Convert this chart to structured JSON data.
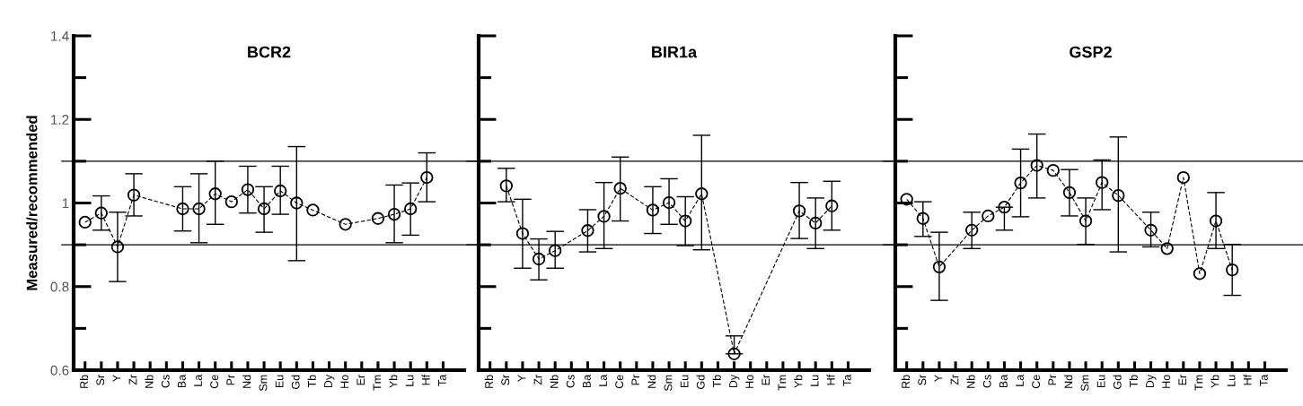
{
  "chart_data": [
    {
      "type": "line",
      "title": "BCR2",
      "ylabel": "Measured/recommended",
      "categories": [
        "Rb",
        "Sr",
        "Y",
        "Zr",
        "Nb",
        "Cs",
        "Ba",
        "La",
        "Ce",
        "Pr",
        "Nd",
        "Sm",
        "Eu",
        "Gd",
        "Tb",
        "Dy",
        "Ho",
        "Er",
        "Tm",
        "Yb",
        "Lu",
        "Hf",
        "Ta"
      ],
      "series": [
        {
          "color": "#000000",
          "values": [
            0.954,
            0.976,
            0.895,
            1.019,
            null,
            null,
            0.986,
            0.986,
            1.022,
            1.003,
            1.032,
            0.986,
            1.029,
            1.0,
            0.983,
            null,
            0.949,
            null,
            0.963,
            0.973,
            0.986,
            1.061,
            null
          ],
          "errors": [
            null,
            [
              0.935,
              1.017
            ],
            [
              0.812,
              0.978
            ],
            [
              0.969,
              1.07
            ],
            null,
            null,
            [
              0.933,
              1.039
            ],
            [
              0.905,
              1.07
            ],
            [
              0.949,
              1.1
            ],
            null,
            [
              0.976,
              1.088
            ],
            [
              0.93,
              1.039
            ],
            [
              0.973,
              1.088
            ],
            [
              0.862,
              1.135
            ],
            null,
            null,
            null,
            null,
            null,
            [
              0.905,
              1.043
            ],
            [
              0.923,
              1.048
            ],
            [
              1.003,
              1.12
            ],
            null
          ]
        }
      ],
      "ylim": [
        0.6,
        1.4
      ],
      "yticks": [
        0.6,
        {
          "value": 0.7,
          "label": null
        },
        0.8,
        {
          "value": 0.9,
          "label": null
        },
        {
          "value": 1.0,
          "label": "1"
        },
        {
          "value": 1.1,
          "label": null
        },
        1.2,
        {
          "value": 1.3,
          "label": null
        },
        1.4
      ],
      "ref_lines": [
        {
          "axis": "y",
          "value": 1.1,
          "color": "#000000"
        },
        {
          "axis": "y",
          "value": 0.9,
          "color": "#000000"
        }
      ],
      "marker": "circle",
      "line_style": "dashed",
      "grid": false,
      "legend": false
    },
    {
      "type": "line",
      "title": "BIR1a",
      "categories": [
        "Rb",
        "Sr",
        "Y",
        "Zr",
        "Nb",
        "Cs",
        "Ba",
        "La",
        "Ce",
        "Pr",
        "Nd",
        "Sm",
        "Eu",
        "Gd",
        "Tb",
        "Dy",
        "Ho",
        "Er",
        "Tm",
        "Yb",
        "Lu",
        "Hf",
        "Ta"
      ],
      "series": [
        {
          "color": "#000000",
          "values": [
            null,
            1.041,
            0.927,
            0.866,
            0.886,
            null,
            0.934,
            0.968,
            1.035,
            null,
            0.983,
            1.001,
            0.957,
            1.022,
            null,
            0.639,
            null,
            null,
            null,
            0.981,
            0.952,
            0.993,
            null
          ],
          "errors": [
            null,
            [
              1.003,
              1.083
            ],
            [
              0.844,
              1.009
            ],
            [
              0.816,
              0.914
            ],
            [
              0.844,
              0.932
            ],
            null,
            [
              0.883,
              0.984
            ],
            [
              0.891,
              1.049
            ],
            [
              0.957,
              1.11
            ],
            null,
            [
              0.927,
              1.039
            ],
            [
              0.949,
              1.058
            ],
            [
              0.898,
              1.015
            ],
            [
              0.888,
              1.162
            ],
            null,
            [
              0.639,
              0.682
            ],
            null,
            null,
            null,
            [
              0.915,
              1.049
            ],
            [
              0.891,
              1.012
            ],
            [
              0.935,
              1.052
            ],
            null
          ]
        }
      ],
      "ylim": [
        0.6,
        1.4
      ],
      "yticks": [
        0.6,
        {
          "value": 0.7,
          "label": null
        },
        0.8,
        {
          "value": 0.9,
          "label": null
        },
        1,
        {
          "value": 1.1,
          "label": null
        },
        1.2,
        {
          "value": 1.3,
          "label": null
        },
        1.4
      ],
      "tick_labels": "x",
      "ref_lines": [
        {
          "axis": "y",
          "value": 1.1,
          "color": "#000000"
        },
        {
          "axis": "y",
          "value": 0.9,
          "color": "#000000"
        }
      ],
      "marker": "circle",
      "line_style": "dashed",
      "grid": false,
      "legend": false
    },
    {
      "type": "line",
      "title": "GSP2",
      "categories": [
        "Rb",
        "Sr",
        "Y",
        "Zr",
        "Nb",
        "Cs",
        "Ba",
        "La",
        "Ce",
        "Pr",
        "Nd",
        "Sm",
        "Eu",
        "Gd",
        "Tb",
        "Dy",
        "Ho",
        "Er",
        "Tm",
        "Yb",
        "Lu",
        "Hf",
        "Ta"
      ],
      "series": [
        {
          "color": "#000000",
          "values": [
            1.009,
            0.963,
            0.847,
            null,
            0.935,
            0.969,
            0.99,
            1.048,
            1.09,
            1.078,
            1.025,
            0.957,
            1.049,
            1.018,
            null,
            0.935,
            0.891,
            1.061,
            0.831,
            0.957,
            0.84,
            null,
            null
          ],
          "errors": [
            null,
            [
              0.92,
              1.003
            ],
            [
              0.767,
              0.93
            ],
            null,
            [
              0.891,
              0.978
            ],
            null,
            [
              0.935,
              0.99
            ],
            [
              0.967,
              1.129
            ],
            [
              1.012,
              1.165
            ],
            null,
            [
              0.969,
              1.08
            ],
            [
              0.901,
              1.012
            ],
            [
              0.984,
              1.103
            ],
            [
              0.883,
              1.158
            ],
            null,
            [
              0.895,
              0.978
            ],
            null,
            null,
            null,
            [
              0.891,
              1.025
            ],
            [
              0.779,
              0.901
            ],
            null,
            null
          ]
        }
      ],
      "ylim": [
        0.6,
        1.4
      ],
      "yticks": [
        0.6,
        {
          "value": 0.7,
          "label": null
        },
        0.8,
        {
          "value": 0.9,
          "label": null
        },
        1,
        {
          "value": 1.1,
          "label": null
        },
        1.2,
        {
          "value": 1.3,
          "label": null
        },
        1.4
      ],
      "tick_labels": "x",
      "ref_lines": [
        {
          "axis": "y",
          "value": 1.1,
          "color": "#000000"
        },
        {
          "axis": "y",
          "value": 0.9,
          "color": "#000000"
        }
      ],
      "marker": "circle",
      "line_style": "dashed",
      "grid": false,
      "legend": false
    }
  ]
}
